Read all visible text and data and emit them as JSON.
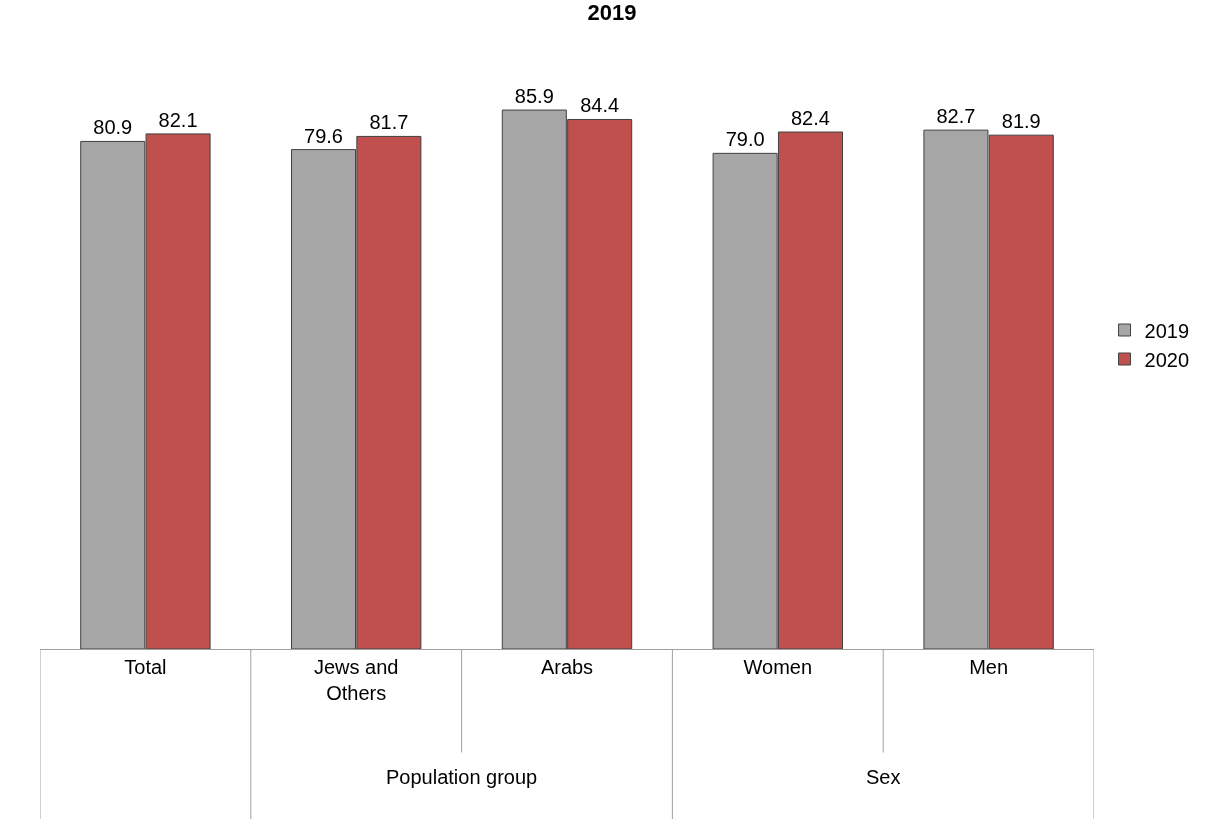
{
  "chart_data": {
    "type": "bar",
    "title": "2019",
    "categories": [
      "Total",
      "Jews and Others",
      "Arabs",
      "Women",
      "Men"
    ],
    "series": [
      {
        "name": "2019",
        "color": "#a6a6a6",
        "values": [
          80.9,
          79.6,
          85.9,
          79.0,
          82.7
        ],
        "value_labels": [
          "80.9",
          "79.6",
          "85.9",
          "79.0",
          "82.7"
        ]
      },
      {
        "name": "2020",
        "color": "#c0504d",
        "values": [
          82.1,
          81.7,
          84.4,
          82.4,
          81.9
        ],
        "value_labels": [
          "82.1",
          "81.7",
          "84.4",
          "82.4",
          "81.9"
        ]
      }
    ],
    "legend": "right",
    "annotations": [
      "Population group",
      "Sex"
    ]
  }
}
